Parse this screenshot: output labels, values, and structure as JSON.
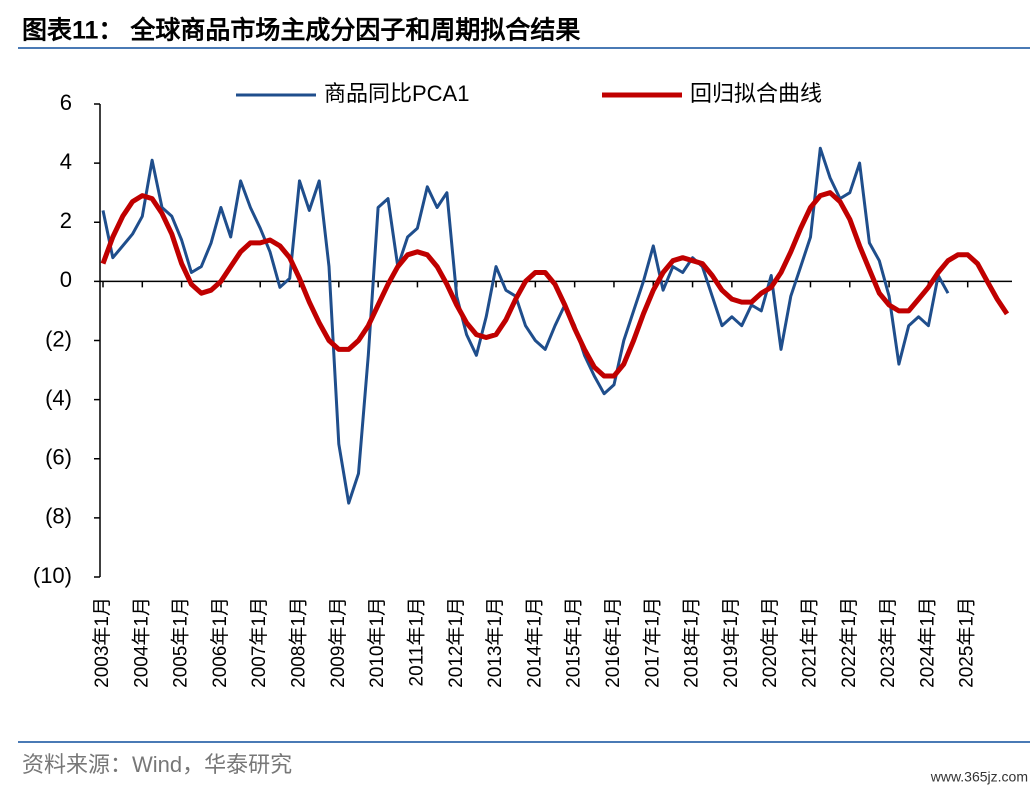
{
  "chart_data": {
    "type": "line",
    "title": "图表11：  全球商品市场主成分因子和周期拟合结果",
    "source": "资料来源：Wind，华泰研究",
    "watermark": "www.365jz.com",
    "categories": [
      "2003年1月",
      null,
      null,
      null,
      "2004年1月",
      null,
      null,
      null,
      "2005年1月",
      null,
      null,
      null,
      "2006年1月",
      null,
      null,
      null,
      "2007年1月",
      null,
      null,
      null,
      "2008年1月",
      null,
      null,
      null,
      "2009年1月",
      null,
      null,
      null,
      "2010年1月",
      null,
      null,
      null,
      "2011年1月",
      null,
      null,
      null,
      "2012年1月",
      null,
      null,
      null,
      "2013年1月",
      null,
      null,
      null,
      "2014年1月",
      null,
      null,
      null,
      "2015年1月",
      null,
      null,
      null,
      "2016年1月",
      null,
      null,
      null,
      "2017年1月",
      null,
      null,
      null,
      "2018年1月",
      null,
      null,
      null,
      "2019年1月",
      null,
      null,
      null,
      "2020年1月",
      null,
      null,
      null,
      "2021年1月",
      null,
      null,
      null,
      "2022年1月",
      null,
      null,
      null,
      "2023年1月",
      null,
      null,
      null,
      "2024年1月",
      null,
      null,
      null,
      "2025年1月",
      null,
      null,
      null,
      null
    ],
    "series": [
      {
        "name": "商品同比PCA1",
        "color": "#1f4e8c",
        "width": 3,
        "values": [
          2.4,
          0.8,
          1.2,
          1.6,
          2.2,
          4.1,
          2.5,
          2.2,
          1.4,
          0.3,
          0.5,
          1.3,
          2.5,
          1.5,
          3.4,
          2.5,
          1.8,
          1.0,
          -0.2,
          0.1,
          3.4,
          2.4,
          3.4,
          0.5,
          -5.5,
          -7.5,
          -6.5,
          -2.5,
          2.5,
          2.8,
          0.5,
          1.5,
          1.8,
          3.2,
          2.5,
          3.0,
          -0.5,
          -1.8,
          -2.5,
          -1.2,
          0.5,
          -0.3,
          -0.5,
          -1.5,
          -2.0,
          -2.3,
          -1.5,
          -0.8,
          -1.5,
          -2.5,
          -3.2,
          -3.8,
          -3.5,
          -2.0,
          -1.0,
          0.0,
          1.2,
          -0.3,
          0.5,
          0.3,
          0.8,
          0.5,
          -0.5,
          -1.5,
          -1.2,
          -1.5,
          -0.8,
          -1.0,
          0.2,
          -2.3,
          -0.5,
          0.5,
          1.5,
          4.5,
          3.5,
          2.8,
          3.0,
          4.0,
          1.3,
          0.7,
          -0.5,
          -2.8,
          -1.5,
          -1.2,
          -1.5,
          0.2,
          -0.4,
          null,
          null,
          null,
          null,
          null,
          null
        ]
      },
      {
        "name": "回归拟合曲线",
        "color": "#c00000",
        "width": 5,
        "values": [
          0.6,
          1.5,
          2.2,
          2.7,
          2.9,
          2.8,
          2.3,
          1.6,
          0.6,
          -0.1,
          -0.4,
          -0.3,
          0.0,
          0.5,
          1.0,
          1.3,
          1.3,
          1.4,
          1.2,
          0.8,
          0.1,
          -0.7,
          -1.4,
          -2.0,
          -2.3,
          -2.3,
          -2.0,
          -1.5,
          -0.8,
          -0.1,
          0.5,
          0.9,
          1.0,
          0.9,
          0.5,
          -0.1,
          -0.8,
          -1.4,
          -1.8,
          -1.9,
          -1.8,
          -1.3,
          -0.6,
          0.0,
          0.3,
          0.3,
          -0.1,
          -0.8,
          -1.6,
          -2.3,
          -2.9,
          -3.2,
          -3.2,
          -2.8,
          -2.0,
          -1.1,
          -0.3,
          0.3,
          0.7,
          0.8,
          0.7,
          0.6,
          0.2,
          -0.3,
          -0.6,
          -0.7,
          -0.7,
          -0.4,
          -0.2,
          0.3,
          1.0,
          1.8,
          2.5,
          2.9,
          3.0,
          2.7,
          2.1,
          1.2,
          0.4,
          -0.4,
          -0.8,
          -1.0,
          -1.0,
          -0.6,
          -0.2,
          0.3,
          0.7,
          0.9,
          0.9,
          0.6,
          0.0,
          -0.6,
          -1.1
        ]
      }
    ],
    "ylim": [
      -10,
      6
    ],
    "yticks": [
      {
        "value": -10,
        "label": "(10)"
      },
      {
        "value": -8,
        "label": "(8)"
      },
      {
        "value": -6,
        "label": "(6)"
      },
      {
        "value": -4,
        "label": "(4)"
      },
      {
        "value": -2,
        "label": "(2)"
      },
      0,
      2,
      4,
      6
    ],
    "grid": false
  }
}
